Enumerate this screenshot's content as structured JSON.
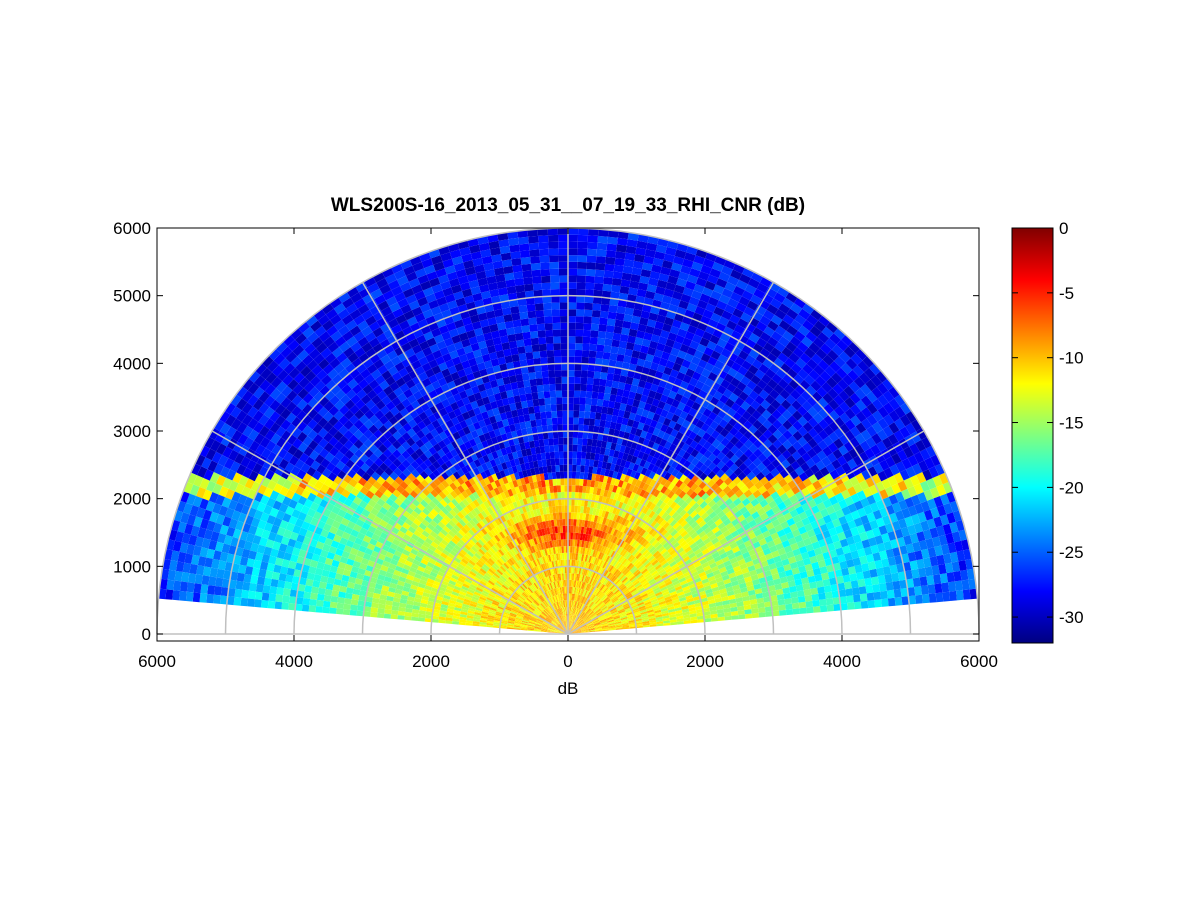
{
  "chart_data": {
    "type": "heatmap",
    "projection": "polar-rhi",
    "title": "WLS200S-16_2013_05_31__07_19_33_RHI_CNR (dB)",
    "xlabel": "dB",
    "ylabel": "",
    "xlim": [
      -6000,
      6000
    ],
    "ylim": [
      0,
      6000
    ],
    "x_tick_labels": [
      "6000",
      "4000",
      "2000",
      "0",
      "2000",
      "4000",
      "6000"
    ],
    "y_tick_labels": [
      "0",
      "1000",
      "2000",
      "3000",
      "4000",
      "5000",
      "6000"
    ],
    "range_max_m": 6000,
    "elevation_deg": [
      5,
      175
    ],
    "range_rings_m": [
      1000,
      2000,
      3000,
      4000,
      5000,
      6000
    ],
    "radial_spokes_deg": [
      0,
      30,
      60,
      90,
      120,
      150,
      180
    ],
    "colorbar": {
      "colormap": "jet",
      "clim": [
        -32,
        0
      ],
      "tick_labels": [
        "0",
        "-5",
        "-10",
        "-15",
        "-20",
        "-25",
        "-30"
      ]
    },
    "field_summary": {
      "near_field_cnr_db": -10,
      "peak_cnr_db_at_1500m_altitude": -4,
      "boundary_layer_top_m": 2200,
      "boundary_layer_top_cnr_db": -5,
      "free_troposphere_cnr_db": -28
    }
  }
}
